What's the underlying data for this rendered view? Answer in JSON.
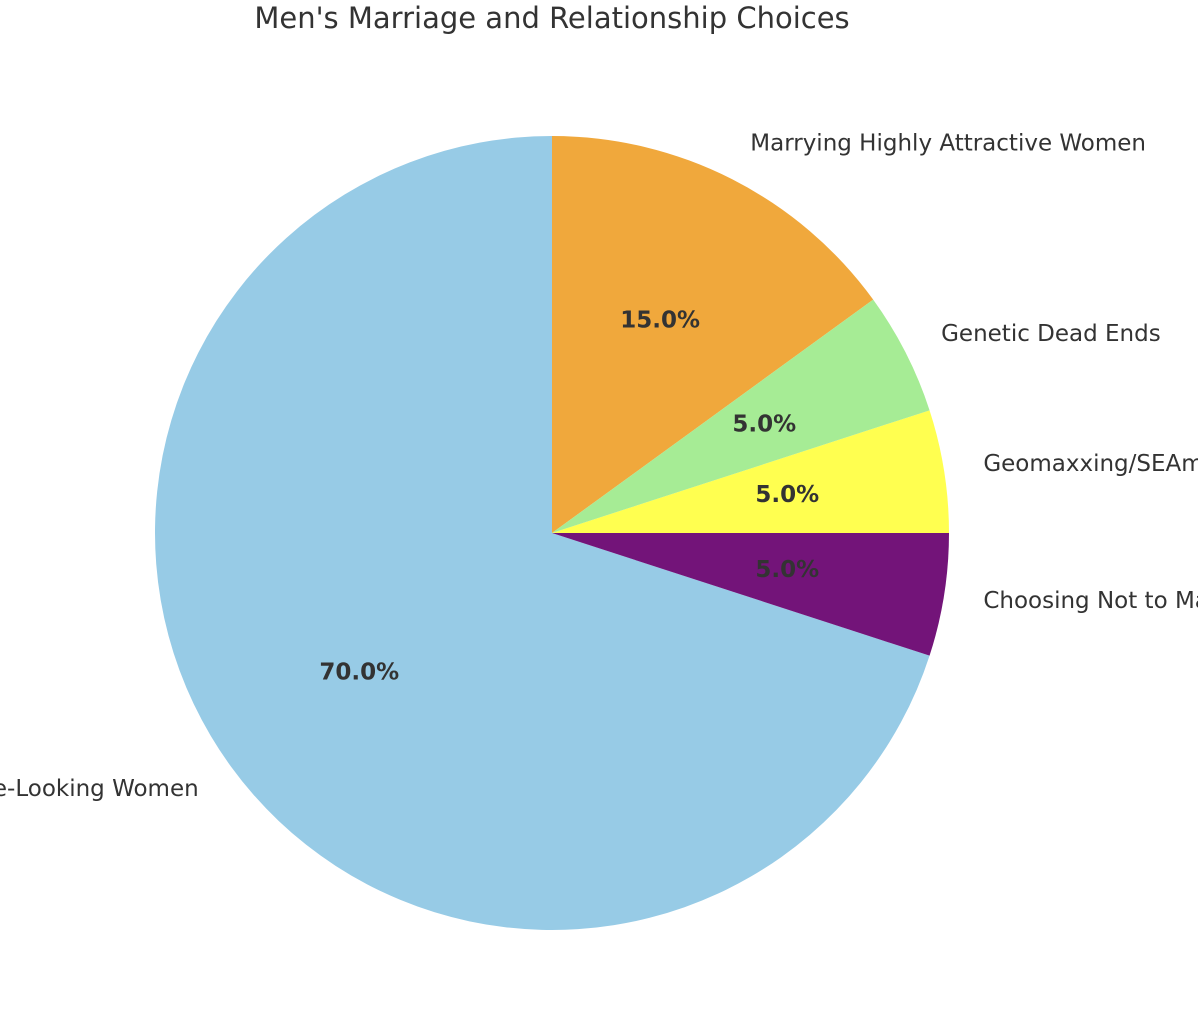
{
  "chart_data": {
    "type": "pie",
    "title": "Men's Marriage and Relationship Choices",
    "slices": [
      {
        "label": "Marrying Highly Attractive Women",
        "value": 15.0,
        "pct_label": "15.0%",
        "color": "#F0A83C"
      },
      {
        "label": "Marrying Average-Looking Women",
        "value": 70.0,
        "pct_label": "70.0%",
        "color": "#97CBE6"
      },
      {
        "label": "Choosing Not to Marry",
        "value": 5.0,
        "pct_label": "5.0%",
        "color": "#731479"
      },
      {
        "label": "Geomaxxing/SEAmaxxing",
        "value": 5.0,
        "pct_label": "5.0%",
        "color": "#FFFF50"
      },
      {
        "label": "Genetic Dead Ends",
        "value": 5.0,
        "pct_label": "5.0%",
        "color": "#A6EC95"
      }
    ],
    "start_angle_deg": 36,
    "direction": "counterclockwise",
    "legend": "none"
  }
}
